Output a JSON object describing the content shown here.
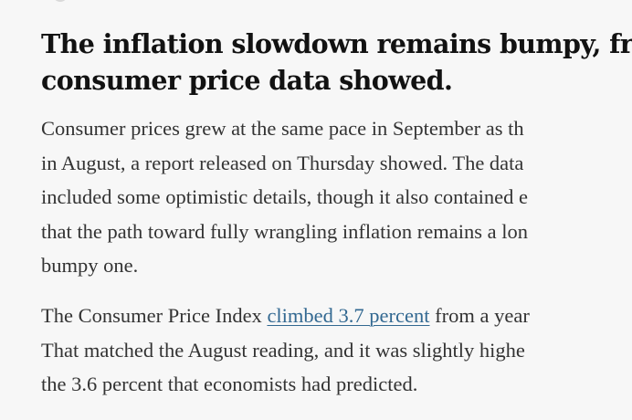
{
  "headline": {
    "lines": [
      "The inflation slowdown remains bumpy, fresh",
      "consumer price data showed."
    ]
  },
  "paragraph_1": {
    "lines": [
      "Consumer prices grew at the same pace in September as th",
      "in August, a report released on Thursday showed. The data",
      "included some optimistic details, though it also contained e",
      "that the path toward fully wrangling inflation remains a lon",
      "bumpy one."
    ]
  },
  "paragraph_2": {
    "line_1": {
      "before": "The Consumer Price Index ",
      "link": "climbed 3.7 percent",
      "after": " from a year"
    },
    "lines": [
      "That matched the August reading, and it was slightly highe",
      "the 3.6 percent that economists had predicted."
    ]
  },
  "colors": {
    "background": "#f7f7f7",
    "headline": "#121212",
    "body_text": "#333333",
    "link": "#326891"
  }
}
